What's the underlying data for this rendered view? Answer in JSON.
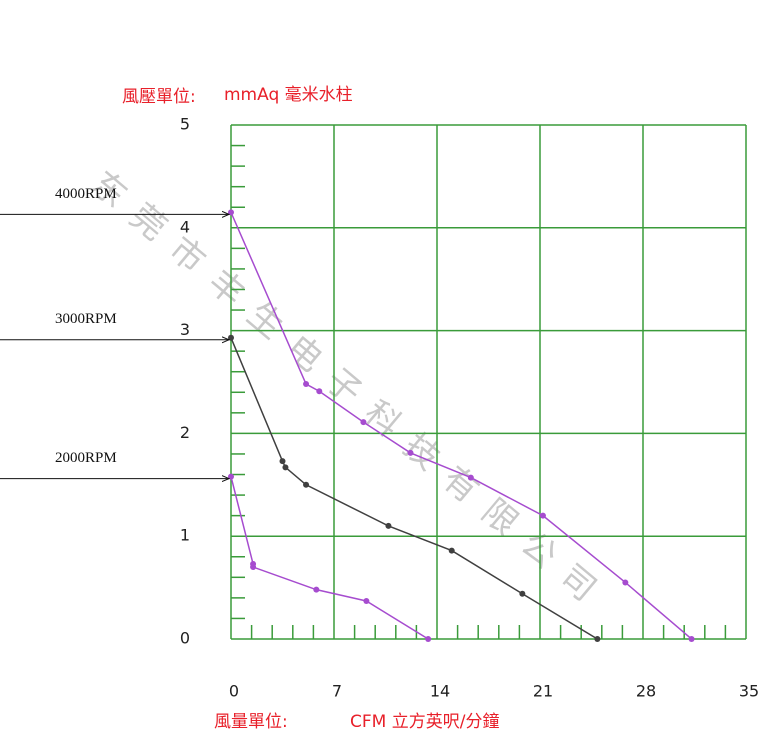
{
  "chart_data": {
    "type": "line",
    "ylabel": "風壓單位:",
    "yunit": "mmAq 毫米水柱",
    "xlabel": "風量單位:",
    "xunit": "CFM 立方英呎/分鐘",
    "watermark": "东莞市丰生电子科技有限公司",
    "xlim": [
      0,
      35
    ],
    "ylim": [
      0,
      5
    ],
    "xticks": [
      0,
      7,
      14,
      21,
      28,
      35
    ],
    "yticks": [
      0,
      1,
      2,
      3,
      4,
      5
    ],
    "xminorticks": [
      1.4,
      2.8,
      4.2,
      5.6,
      8.4,
      9.8,
      11.2,
      12.6,
      15.4,
      16.8,
      18.2,
      19.6,
      22.4,
      23.8,
      25.2,
      26.6,
      29.4,
      30.8,
      32.2,
      33.6
    ],
    "yminorticks": [
      0.2,
      0.4,
      0.6,
      0.8,
      1.2,
      1.4,
      1.6,
      1.8,
      2.2,
      2.4,
      2.6,
      2.8,
      3.2,
      3.4,
      3.6,
      3.8,
      4.2,
      4.4,
      4.6,
      4.8
    ],
    "grid": true,
    "grid_color": "#3a9b3a",
    "series": [
      {
        "name": "4000RPM",
        "color": "#a64ccf",
        "x": [
          0,
          5.1,
          6,
          9,
          12.2,
          16.3,
          21.2,
          26.8,
          31.3
        ],
        "values": [
          4.15,
          2.48,
          2.41,
          2.11,
          1.81,
          1.57,
          1.2,
          0.55,
          0
        ]
      },
      {
        "name": "3000RPM",
        "color": "#404040",
        "x": [
          0,
          3.5,
          3.7,
          5.1,
          10.7,
          15,
          19.8,
          24.9
        ],
        "values": [
          2.93,
          1.73,
          1.67,
          1.5,
          1.1,
          0.86,
          0.44,
          0
        ]
      },
      {
        "name": "2000RPM",
        "color": "#a64ccf",
        "x": [
          0,
          1.5,
          1.5,
          5.8,
          9.2,
          13.4
        ],
        "values": [
          1.58,
          0.73,
          0.7,
          0.48,
          0.37,
          0
        ]
      }
    ]
  }
}
